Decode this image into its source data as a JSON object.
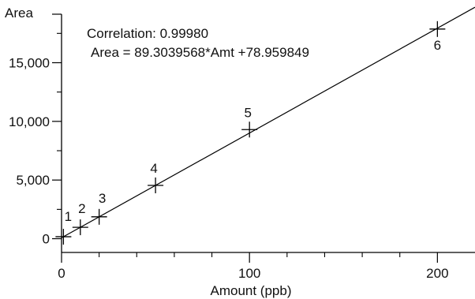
{
  "chart_data": {
    "type": "scatter",
    "title": "",
    "xlabel": "Amount (ppb)",
    "ylabel": "Area",
    "xlim": [
      0,
      220
    ],
    "ylim": [
      -500,
      19000
    ],
    "x_ticks": [
      0,
      100,
      200
    ],
    "x_tick_labels": [
      "0",
      "100",
      "200"
    ],
    "x_minor_ticks": [
      20,
      40,
      60,
      80,
      120,
      140,
      160,
      180
    ],
    "y_ticks": [
      0,
      5000,
      10000,
      15000
    ],
    "y_tick_labels": [
      "0",
      "5,000",
      "10,000",
      "15,000"
    ],
    "y_minor_ticks": [
      2500,
      7500,
      12500,
      17500
    ],
    "grid": false,
    "annotations": {
      "correlation": "Correlation: 0.99980",
      "equation": "Area = 89.3039568*Amt +78.959849"
    },
    "points": [
      {
        "label": "1",
        "x": 1,
        "y": 168
      },
      {
        "label": "2",
        "x": 10,
        "y": 972
      },
      {
        "label": "3",
        "x": 20,
        "y": 1865
      },
      {
        "label": "4",
        "x": 50,
        "y": 4544
      },
      {
        "label": "5",
        "x": 100,
        "y": 9300
      },
      {
        "label": "6",
        "x": 200,
        "y": 17870
      }
    ],
    "fit_line": {
      "slope": 89.3039568,
      "intercept": 78.959849
    }
  }
}
